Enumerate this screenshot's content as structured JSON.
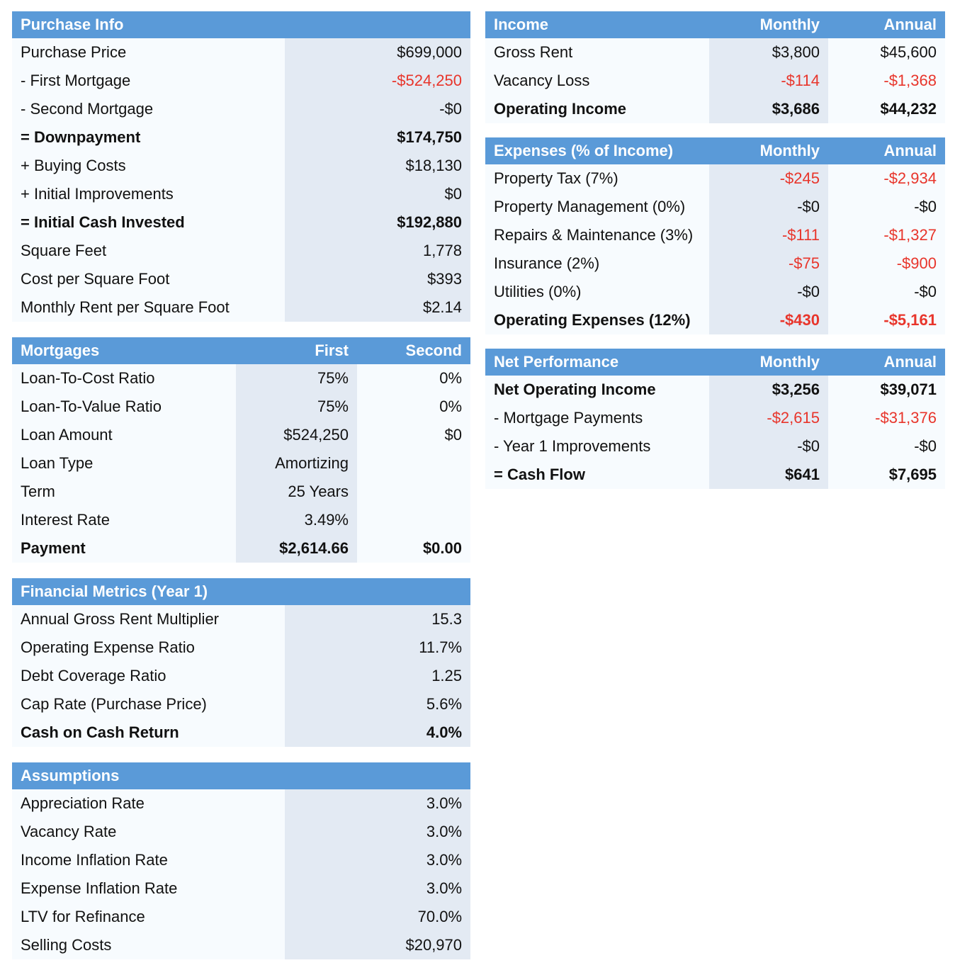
{
  "purchase_info": {
    "title": "Purchase Info",
    "rows": [
      {
        "label": "Purchase Price",
        "value": "$699,000",
        "bold": false,
        "neg": false
      },
      {
        "label": "- First Mortgage",
        "value": "-$524,250",
        "bold": false,
        "neg": true
      },
      {
        "label": "- Second Mortgage",
        "value": "-$0",
        "bold": false,
        "neg": false
      },
      {
        "label": "= Downpayment",
        "value": "$174,750",
        "bold": true,
        "neg": false
      },
      {
        "label": "+ Buying Costs",
        "value": "$18,130",
        "bold": false,
        "neg": false
      },
      {
        "label": "+ Initial Improvements",
        "value": "$0",
        "bold": false,
        "neg": false
      },
      {
        "label": "= Initial Cash Invested",
        "value": "$192,880",
        "bold": true,
        "neg": false
      },
      {
        "label": "Square Feet",
        "value": "1,778",
        "bold": false,
        "neg": false
      },
      {
        "label": "Cost per Square Foot",
        "value": "$393",
        "bold": false,
        "neg": false
      },
      {
        "label": "Monthly Rent per Square Foot",
        "value": "$2.14",
        "bold": false,
        "neg": false
      }
    ]
  },
  "mortgages": {
    "title": "Mortgages",
    "col_first": "First",
    "col_second": "Second",
    "rows": [
      {
        "label": "Loan-To-Cost Ratio",
        "first": "75%",
        "second": "0%",
        "bold": false
      },
      {
        "label": "Loan-To-Value Ratio",
        "first": "75%",
        "second": "0%",
        "bold": false
      },
      {
        "label": "Loan Amount",
        "first": "$524,250",
        "second": "$0",
        "bold": false
      },
      {
        "label": "Loan Type",
        "first": "Amortizing",
        "second": "",
        "bold": false
      },
      {
        "label": "Term",
        "first": "25 Years",
        "second": "",
        "bold": false
      },
      {
        "label": "Interest Rate",
        "first": "3.49%",
        "second": "",
        "bold": false
      },
      {
        "label": "Payment",
        "first": "$2,614.66",
        "second": "$0.00",
        "bold": true
      }
    ]
  },
  "financial_metrics": {
    "title": "Financial Metrics (Year 1)",
    "rows": [
      {
        "label": "Annual Gross Rent Multiplier",
        "value": "15.3",
        "bold": false,
        "neg": false
      },
      {
        "label": "Operating Expense Ratio",
        "value": "11.7%",
        "bold": false,
        "neg": false
      },
      {
        "label": "Debt Coverage Ratio",
        "value": "1.25",
        "bold": false,
        "neg": false
      },
      {
        "label": "Cap Rate (Purchase Price)",
        "value": "5.6%",
        "bold": false,
        "neg": false
      },
      {
        "label": "Cash on Cash Return",
        "value": "4.0%",
        "bold": true,
        "neg": false
      }
    ]
  },
  "assumptions": {
    "title": "Assumptions",
    "rows": [
      {
        "label": "Appreciation Rate",
        "value": "3.0%",
        "bold": false,
        "neg": false
      },
      {
        "label": "Vacancy Rate",
        "value": "3.0%",
        "bold": false,
        "neg": false
      },
      {
        "label": "Income Inflation Rate",
        "value": "3.0%",
        "bold": false,
        "neg": false
      },
      {
        "label": "Expense Inflation Rate",
        "value": "3.0%",
        "bold": false,
        "neg": false
      },
      {
        "label": "LTV for Refinance",
        "value": "70.0%",
        "bold": false,
        "neg": false
      },
      {
        "label": "Selling Costs",
        "value": "$20,970",
        "bold": false,
        "neg": false
      }
    ]
  },
  "income": {
    "title": "Income",
    "col_monthly": "Monthly",
    "col_annual": "Annual",
    "rows": [
      {
        "label": "Gross Rent",
        "monthly": "$3,800",
        "annual": "$45,600",
        "bold": false,
        "neg": false
      },
      {
        "label": "Vacancy Loss",
        "monthly": "-$114",
        "annual": "-$1,368",
        "bold": false,
        "neg": true
      },
      {
        "label": "Operating Income",
        "monthly": "$3,686",
        "annual": "$44,232",
        "bold": true,
        "neg": false
      }
    ]
  },
  "expenses": {
    "title": "Expenses (% of Income)",
    "col_monthly": "Monthly",
    "col_annual": "Annual",
    "rows": [
      {
        "label": "Property Tax (7%)",
        "monthly": "-$245",
        "annual": "-$2,934",
        "bold": false,
        "neg": true
      },
      {
        "label": "Property Management (0%)",
        "monthly": "-$0",
        "annual": "-$0",
        "bold": false,
        "neg": false
      },
      {
        "label": "Repairs & Maintenance (3%)",
        "monthly": "-$111",
        "annual": "-$1,327",
        "bold": false,
        "neg": true
      },
      {
        "label": "Insurance (2%)",
        "monthly": "-$75",
        "annual": "-$900",
        "bold": false,
        "neg": true
      },
      {
        "label": "Utilities (0%)",
        "monthly": "-$0",
        "annual": "-$0",
        "bold": false,
        "neg": false
      },
      {
        "label": "Operating Expenses (12%)",
        "monthly": "-$430",
        "annual": "-$5,161",
        "bold": true,
        "neg": true
      }
    ]
  },
  "net_performance": {
    "title": "Net Performance",
    "col_monthly": "Monthly",
    "col_annual": "Annual",
    "rows": [
      {
        "label": "Net Operating Income",
        "monthly": "$3,256",
        "annual": "$39,071",
        "bold": true,
        "neg": false
      },
      {
        "label": "- Mortgage Payments",
        "monthly": "-$2,615",
        "annual": "-$31,376",
        "bold": false,
        "neg": true
      },
      {
        "label": "- Year 1 Improvements",
        "monthly": "-$0",
        "annual": "-$0",
        "bold": false,
        "neg": false
      },
      {
        "label": "= Cash Flow",
        "monthly": "$641",
        "annual": "$7,695",
        "bold": true,
        "neg": false
      }
    ]
  },
  "colors": {
    "header": "#5a9ad8",
    "shade": "#e3eaf3",
    "light": "#f7fbfe",
    "negative": "#e8352b"
  }
}
